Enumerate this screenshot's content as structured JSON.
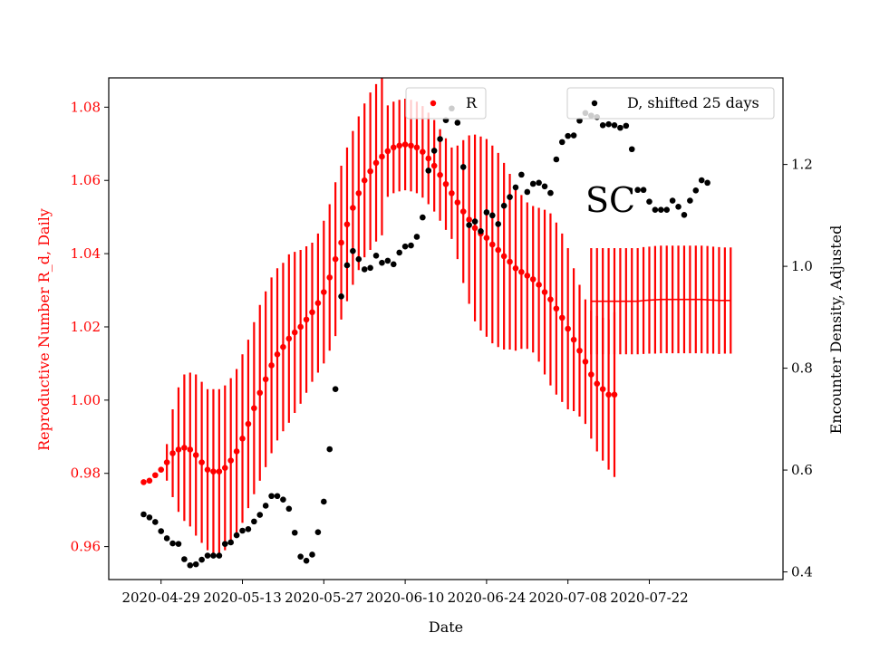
{
  "chart_data": {
    "type": "scatter",
    "xlabel": "Date",
    "ylabel_left": "Reproductive Number R_d, Daily",
    "ylabel_right": "Encounter Density, Adjusted",
    "annotation": "SC",
    "x_ticks": [
      "2020-04-29",
      "2020-05-13",
      "2020-05-27",
      "2020-06-10",
      "2020-06-24",
      "2020-07-08",
      "2020-07-22"
    ],
    "y_left_ticks": [
      "0.96",
      "0.98",
      "1.00",
      "1.02",
      "1.04",
      "1.06",
      "1.08"
    ],
    "y_right_ticks": [
      "0.4",
      "0.6",
      "0.8",
      "1.0",
      "1.2"
    ],
    "x_range": [
      "2020-04-20",
      "2020-08-14"
    ],
    "y_left_range": [
      0.951,
      1.088
    ],
    "y_right_range": [
      0.385,
      1.37
    ],
    "colors": {
      "R": "#ff0000",
      "D": "#000000",
      "left_axis": "#ff0000",
      "right_axis": "#000000"
    },
    "legend": [
      {
        "label": "R",
        "color": "#ff0000",
        "position": "top-center"
      },
      {
        "label": "D, shifted 25 days",
        "color": "#000000",
        "position": "top-right"
      }
    ],
    "series": [
      {
        "name": "R",
        "axis": "left",
        "start_date": "2020-04-26",
        "step_days": 1,
        "values": [
          0.9776,
          0.978,
          0.9795,
          0.981,
          0.983,
          0.9855,
          0.9865,
          0.987,
          0.9865,
          0.985,
          0.983,
          0.981,
          0.9805,
          0.9805,
          0.9815,
          0.9835,
          0.986,
          0.9895,
          0.9935,
          0.9978,
          1.002,
          1.0057,
          1.0095,
          1.0125,
          1.0145,
          1.0168,
          1.0185,
          1.02,
          1.022,
          1.024,
          1.0265,
          1.0295,
          1.0335,
          1.0385,
          1.043,
          1.048,
          1.0525,
          1.0565,
          1.06,
          1.0625,
          1.0648,
          1.0665,
          1.068,
          1.069,
          1.0695,
          1.0698,
          1.0695,
          1.069,
          1.0678,
          1.066,
          1.064,
          1.0615,
          1.059,
          1.0565,
          1.054,
          1.0515,
          1.0493,
          1.047,
          1.0455,
          1.0443,
          1.0425,
          1.041,
          1.0393,
          1.0378,
          1.036,
          1.035,
          1.034,
          1.033,
          1.0315,
          1.0295,
          1.0275,
          1.025,
          1.0225,
          1.0195,
          1.0165,
          1.0135,
          1.0105,
          1.007,
          1.0045,
          1.003,
          1.0015,
          1.0015
        ],
        "errors": [
          0,
          0,
          0,
          0,
          0.005,
          0.012,
          0.017,
          0.02,
          0.021,
          0.022,
          0.022,
          0.022,
          0.0225,
          0.0225,
          0.0225,
          0.0225,
          0.0225,
          0.023,
          0.023,
          0.0235,
          0.024,
          0.024,
          0.024,
          0.0235,
          0.023,
          0.023,
          0.022,
          0.021,
          0.02,
          0.019,
          0.019,
          0.0195,
          0.02,
          0.021,
          0.021,
          0.021,
          0.021,
          0.021,
          0.021,
          0.0215,
          0.0215,
          0.0215,
          0.0125,
          0.0125,
          0.0125,
          0.0125,
          0.0125,
          0.0125,
          0.0125,
          0.0125,
          0.0125,
          0.0125,
          0.0125,
          0.0125,
          0.0155,
          0.0195,
          0.023,
          0.0255,
          0.0265,
          0.027,
          0.027,
          0.0265,
          0.0255,
          0.024,
          0.0225,
          0.021,
          0.02,
          0.02,
          0.021,
          0.0225,
          0.0235,
          0.0235,
          0.023,
          0.022,
          0.0195,
          0.018,
          0.017,
          0.0175,
          0.0185,
          0.0195,
          0.0205,
          0.0225
        ]
      },
      {
        "name": "R",
        "axis": "left",
        "start_date": "2020-07-12",
        "step_days": 1,
        "values": [
          1.027,
          1.027,
          1.027,
          1.027,
          1.027,
          1.027,
          1.027,
          1.027,
          1.027,
          1.0272,
          1.0273,
          1.0274,
          1.0275,
          1.0275,
          1.0275,
          1.0275,
          1.0275,
          1.0275,
          1.0275,
          1.0275,
          1.0274,
          1.0273,
          1.0272,
          1.0272,
          1.0272
        ],
        "errors": [
          0.0145,
          0.0145,
          0.0145,
          0.0145,
          0.0145,
          0.0145,
          0.0145,
          0.0145,
          0.0145,
          0.0146,
          0.0146,
          0.0147,
          0.0147,
          0.0147,
          0.0147,
          0.0147,
          0.0147,
          0.0147,
          0.0147,
          0.0147,
          0.0147,
          0.0146,
          0.0146,
          0.0145,
          0.0145
        ]
      },
      {
        "name": "D, shifted 25 days",
        "axis": "right",
        "start_date": "2020-04-26",
        "step_days": 1,
        "values": [
          0.513,
          0.507,
          0.498,
          0.48,
          0.466,
          0.456,
          0.455,
          0.425,
          0.413,
          0.415,
          0.424,
          0.432,
          0.432,
          0.432,
          0.455,
          0.458,
          0.472,
          0.481,
          0.484,
          0.499,
          0.512,
          0.53,
          0.549,
          0.549,
          0.542,
          0.524,
          0.477,
          0.43,
          0.422,
          0.434,
          0.478,
          0.538,
          0.641,
          0.759,
          0.941,
          1.002,
          1.03,
          1.014,
          0.994,
          0.997,
          1.021,
          1.007,
          1.011,
          1.004,
          1.027,
          1.039,
          1.041,
          1.058,
          1.096,
          1.188,
          1.227,
          1.25,
          1.287,
          1.31,
          1.282,
          1.195,
          1.081,
          1.088,
          1.069,
          1.106,
          1.1,
          1.083,
          1.119,
          1.136,
          1.155,
          1.18,
          1.146,
          1.162,
          1.164,
          1.157,
          1.144,
          1.21,
          1.244,
          1.256,
          1.257,
          1.286,
          1.301,
          1.296,
          1.293,
          1.277,
          1.279,
          1.277,
          1.272,
          1.276,
          1.23,
          1.15,
          1.15,
          1.127,
          1.111,
          1.111,
          1.111,
          1.129,
          1.117,
          1.101,
          1.129,
          1.149,
          1.169,
          1.164
        ]
      }
    ]
  }
}
